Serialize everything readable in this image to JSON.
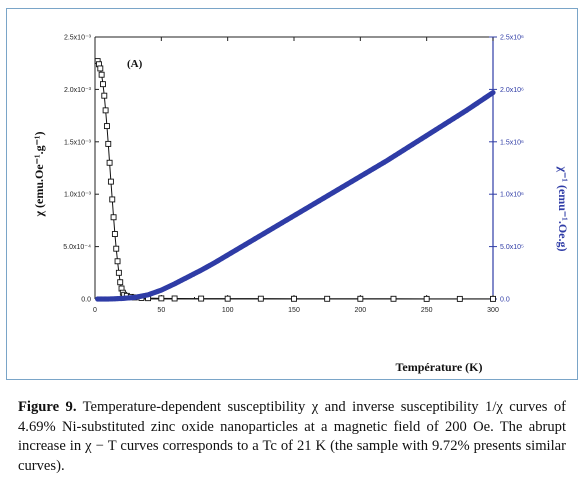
{
  "chart_data": {
    "type": "scatter",
    "panel_label": "(A)",
    "xlabel": "Température (K)",
    "ylabel_left": "χ (emu.Oe⁻¹.g⁻¹)",
    "ylabel_right": "χ⁻¹ (emu⁻¹.Oe.g)",
    "xlim": [
      0,
      300
    ],
    "ylim_left": [
      0,
      0.0025
    ],
    "ylim_right": [
      0,
      2500000
    ],
    "x_ticks": [
      0,
      50,
      100,
      150,
      200,
      250,
      300
    ],
    "x_tick_labels": [
      "0",
      "50",
      "100",
      "150",
      "200",
      "250",
      "300"
    ],
    "y_left_ticks": [
      0,
      0.0005,
      0.001,
      0.0015,
      0.002,
      0.0025
    ],
    "y_left_tick_labels": [
      "0.0",
      "5.0x10⁻⁴",
      "1.0x10⁻³",
      "1.5x10⁻³",
      "2.0x10⁻³",
      "2.5x10⁻³"
    ],
    "y_right_ticks": [
      0,
      500000,
      1000000,
      1500000,
      2000000,
      2500000
    ],
    "y_right_tick_labels": [
      "0.0",
      "5.0x10⁵",
      "1.0x10⁶",
      "1.5x10⁶",
      "2.0x10⁶",
      "2.5x10⁶"
    ],
    "grid": false,
    "colors": {
      "chi_series": "#111111",
      "inverse_chi_series": "#2f3ca6",
      "right_axis": "#2f3ca6"
    },
    "series": [
      {
        "axis": "left",
        "marker": "open-square",
        "x": [
          2,
          3,
          4,
          5,
          6,
          7,
          8,
          9,
          10,
          11,
          12,
          13,
          14,
          15,
          16,
          17,
          18,
          19,
          20,
          21,
          22,
          24,
          27,
          30,
          35,
          40,
          50,
          60,
          80,
          100,
          125,
          150,
          175,
          200,
          225,
          250,
          275,
          300
        ],
        "y": [
          0.00227,
          0.00224,
          0.0022,
          0.00214,
          0.00205,
          0.00194,
          0.0018,
          0.00165,
          0.00148,
          0.0013,
          0.00112,
          0.00095,
          0.00078,
          0.00062,
          0.00048,
          0.00036,
          0.00025,
          0.00016,
          0.0001,
          6e-05,
          4e-05,
          3e-05,
          2e-05,
          1.5e-05,
          1e-05,
          8e-06,
          6e-06,
          5e-06,
          4e-06,
          3e-06,
          3e-06,
          2e-06,
          2e-06,
          2e-06,
          2e-06,
          1e-06,
          1e-06,
          1e-06
        ]
      },
      {
        "axis": "right",
        "marker": "filled-circle",
        "x": [
          2,
          10,
          20,
          30,
          40,
          50,
          60,
          70,
          80,
          90,
          100,
          110,
          120,
          130,
          140,
          150,
          160,
          170,
          180,
          190,
          200,
          210,
          220,
          230,
          240,
          250,
          260,
          270,
          280,
          290,
          300
        ],
        "y": [
          0,
          0,
          5000,
          15000,
          40000,
          85000,
          145000,
          210000,
          275000,
          345000,
          420000,
          495000,
          570000,
          645000,
          720000,
          795000,
          870000,
          945000,
          1020000,
          1095000,
          1170000,
          1245000,
          1320000,
          1400000,
          1480000,
          1560000,
          1640000,
          1720000,
          1800000,
          1885000,
          1970000
        ]
      }
    ]
  },
  "caption": {
    "figure_label": "Figure 9.",
    "text": "Temperature-dependent susceptibility χ and inverse susceptibility 1/χ curves of 4.69% Ni-substituted zinc oxide nanoparticles at a magnetic field of 200 Oe. The abrupt increase in χ − T curves corresponds to a Tc of 21 K (the sample with 9.72% presents similar curves)."
  }
}
